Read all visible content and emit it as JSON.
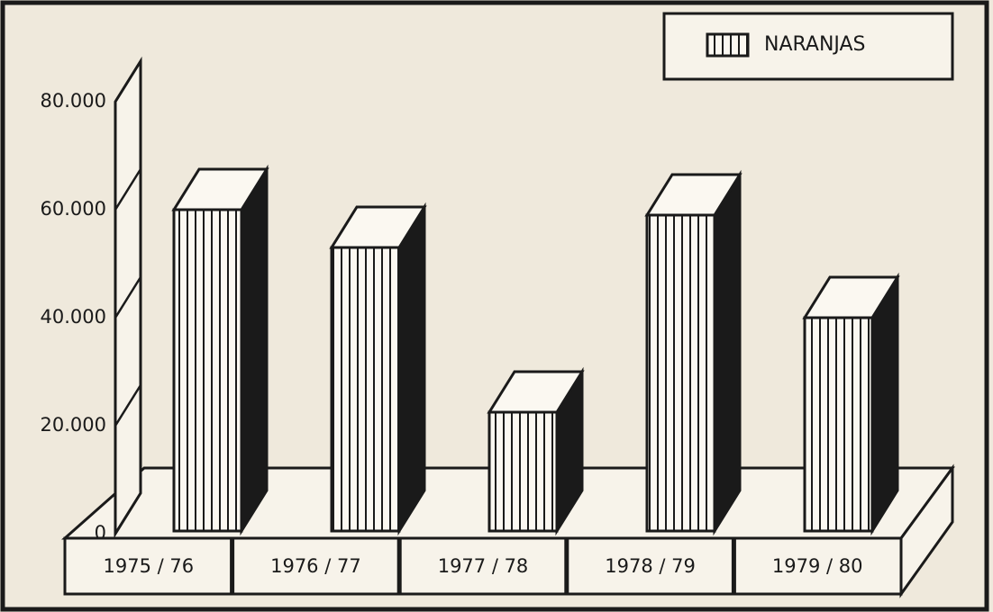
{
  "chart_data": {
    "type": "bar",
    "categories": [
      "1975 / 76",
      "1976 / 77",
      "1977 / 78",
      "1978 / 79",
      "1979 / 80"
    ],
    "series": [
      {
        "name": "NARANJAS",
        "color": "#1a1a1a",
        "values": [
          60000,
          53000,
          22500,
          59000,
          40000
        ]
      }
    ],
    "ylim": [
      0,
      80000
    ],
    "yticks": [
      0,
      {
        "value": 20000,
        "label": "20.000"
      },
      {
        "value": 40000,
        "label": "40.000"
      },
      {
        "value": 60000,
        "label": "60.000"
      },
      {
        "value": 80000,
        "label": "80.000"
      }
    ],
    "legend": "upper right"
  }
}
